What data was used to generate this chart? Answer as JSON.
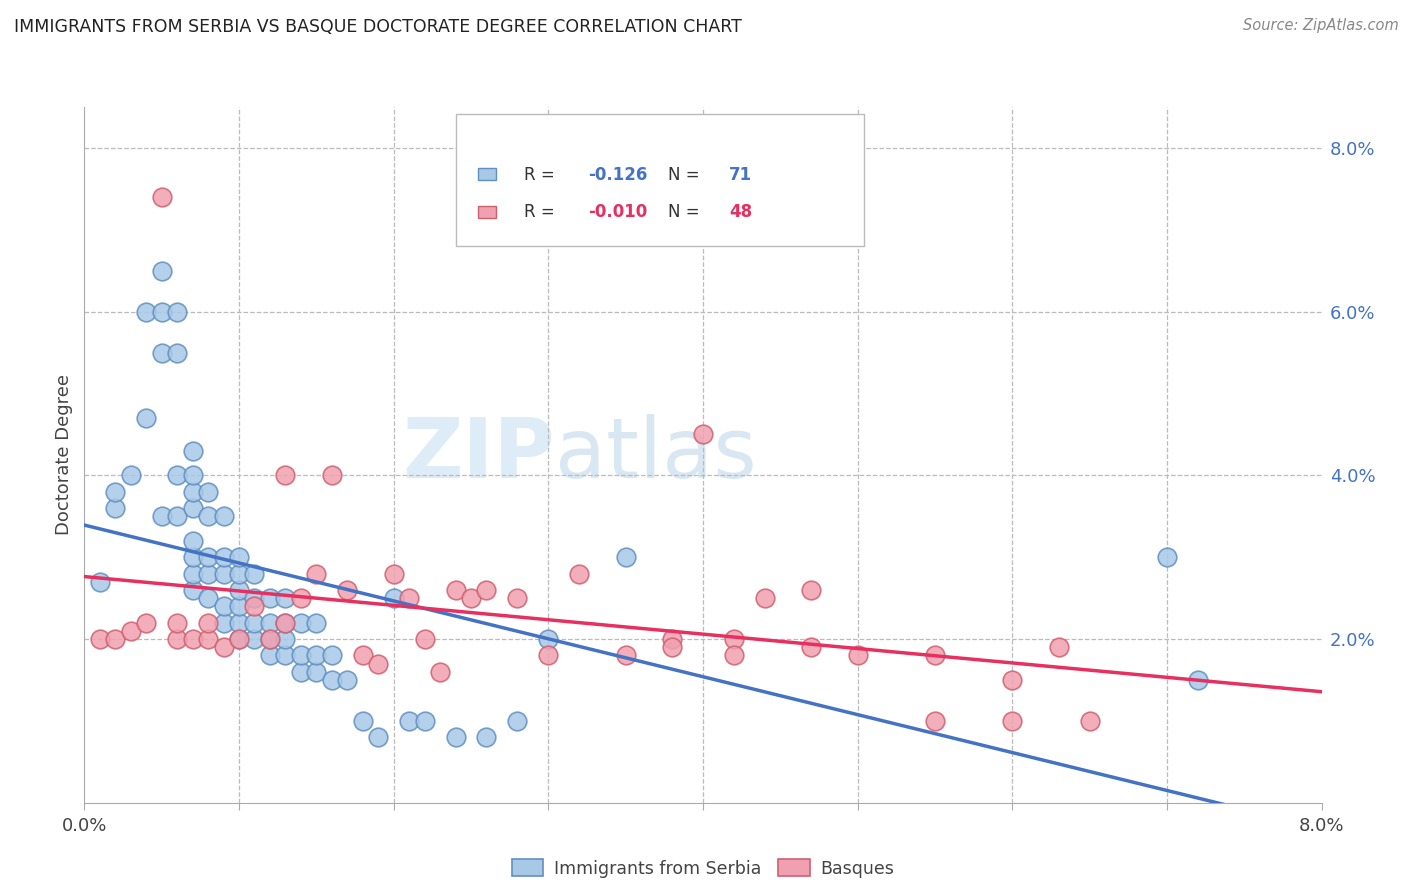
{
  "title": "IMMIGRANTS FROM SERBIA VS BASQUE DOCTORATE DEGREE CORRELATION CHART",
  "source": "Source: ZipAtlas.com",
  "ylabel": "Doctorate Degree",
  "legend1_r": "-0.126",
  "legend1_n": "71",
  "legend2_r": "-0.010",
  "legend2_n": "48",
  "legend1_label": "Immigrants from Serbia",
  "legend2_label": "Basques",
  "blue_scatter": "#A8C8E8",
  "blue_edge": "#6090C0",
  "pink_scatter": "#F0A0B0",
  "pink_edge": "#D06070",
  "trendline_blue": "#4472C4",
  "trendline_pink": "#E83060",
  "watermark_zip": "ZIP",
  "watermark_atlas": "atlas",
  "xmin": 0.0,
  "xmax": 0.08,
  "ymin": 0.0,
  "ymax": 0.085,
  "serbia_x": [
    0.001,
    0.002,
    0.002,
    0.003,
    0.004,
    0.004,
    0.005,
    0.005,
    0.005,
    0.005,
    0.006,
    0.006,
    0.006,
    0.006,
    0.007,
    0.007,
    0.007,
    0.007,
    0.007,
    0.007,
    0.007,
    0.007,
    0.008,
    0.008,
    0.008,
    0.008,
    0.008,
    0.009,
    0.009,
    0.009,
    0.009,
    0.009,
    0.01,
    0.01,
    0.01,
    0.01,
    0.01,
    0.01,
    0.011,
    0.011,
    0.011,
    0.011,
    0.012,
    0.012,
    0.012,
    0.012,
    0.013,
    0.013,
    0.013,
    0.013,
    0.014,
    0.014,
    0.014,
    0.015,
    0.015,
    0.015,
    0.016,
    0.016,
    0.017,
    0.018,
    0.019,
    0.02,
    0.021,
    0.022,
    0.024,
    0.026,
    0.028,
    0.03,
    0.035,
    0.07,
    0.072
  ],
  "serbia_y": [
    0.027,
    0.036,
    0.038,
    0.04,
    0.047,
    0.06,
    0.035,
    0.055,
    0.06,
    0.065,
    0.035,
    0.04,
    0.055,
    0.06,
    0.026,
    0.028,
    0.03,
    0.032,
    0.036,
    0.038,
    0.04,
    0.043,
    0.025,
    0.028,
    0.03,
    0.035,
    0.038,
    0.022,
    0.024,
    0.028,
    0.03,
    0.035,
    0.02,
    0.022,
    0.024,
    0.026,
    0.028,
    0.03,
    0.02,
    0.022,
    0.025,
    0.028,
    0.018,
    0.02,
    0.022,
    0.025,
    0.018,
    0.02,
    0.022,
    0.025,
    0.016,
    0.018,
    0.022,
    0.016,
    0.018,
    0.022,
    0.015,
    0.018,
    0.015,
    0.01,
    0.008,
    0.025,
    0.01,
    0.01,
    0.008,
    0.008,
    0.01,
    0.02,
    0.03,
    0.03,
    0.015
  ],
  "basque_x": [
    0.001,
    0.002,
    0.003,
    0.004,
    0.005,
    0.006,
    0.006,
    0.007,
    0.008,
    0.008,
    0.009,
    0.01,
    0.011,
    0.012,
    0.013,
    0.013,
    0.014,
    0.015,
    0.016,
    0.017,
    0.018,
    0.019,
    0.02,
    0.021,
    0.022,
    0.023,
    0.024,
    0.025,
    0.026,
    0.028,
    0.03,
    0.032,
    0.035,
    0.038,
    0.04,
    0.042,
    0.044,
    0.047,
    0.05,
    0.055,
    0.06,
    0.063,
    0.038,
    0.042,
    0.047,
    0.055,
    0.06,
    0.065
  ],
  "basque_y": [
    0.02,
    0.02,
    0.021,
    0.022,
    0.074,
    0.02,
    0.022,
    0.02,
    0.02,
    0.022,
    0.019,
    0.02,
    0.024,
    0.02,
    0.04,
    0.022,
    0.025,
    0.028,
    0.04,
    0.026,
    0.018,
    0.017,
    0.028,
    0.025,
    0.02,
    0.016,
    0.026,
    0.025,
    0.026,
    0.025,
    0.018,
    0.028,
    0.018,
    0.02,
    0.045,
    0.02,
    0.025,
    0.026,
    0.018,
    0.01,
    0.01,
    0.019,
    0.019,
    0.018,
    0.019,
    0.018,
    0.015,
    0.01
  ]
}
